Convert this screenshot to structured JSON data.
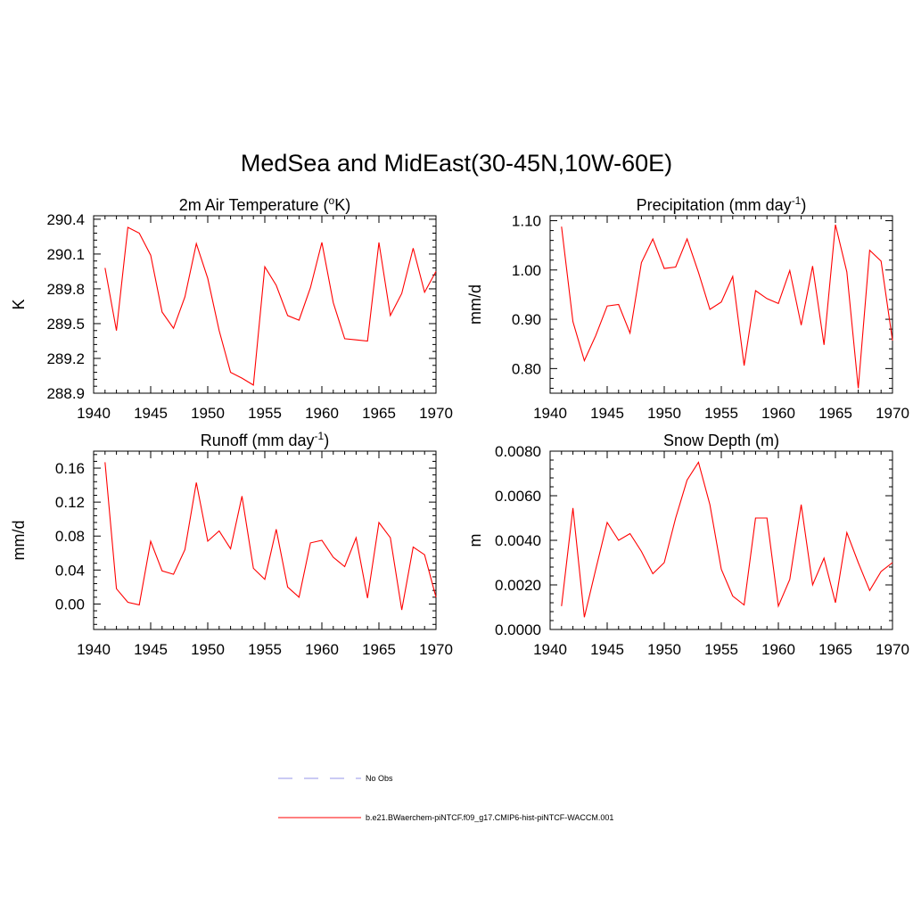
{
  "main_title": "MedSea and MidEast(30-45N,10W-60E)",
  "series_color": "#ff0000",
  "obs_color": "#aaaaee",
  "legend": {
    "obs_label": "No Obs",
    "model_label": "b.e21.BWaerchem-piNTCF.f09_g17.CMIP6-hist-piNTCF-WACCM.001"
  },
  "chart_data": [
    {
      "type": "line",
      "title": "2m Air Temperature (",
      "title_sup": "o",
      "title_after": "K)",
      "title_suffix_sup": "",
      "title_end": "",
      "ylabel": "K",
      "xlim": [
        1940,
        1970
      ],
      "ylim": [
        288.9,
        290.43
      ],
      "xticks": [
        1940,
        1945,
        1950,
        1955,
        1960,
        1965,
        1970
      ],
      "yticks": [
        288.9,
        289.2,
        289.5,
        289.8,
        290.1,
        290.4
      ],
      "ytick_labels": [
        "288.9",
        "289.2",
        "289.5",
        "289.8",
        "290.1",
        "290.4"
      ],
      "x": [
        1941,
        1942,
        1943,
        1944,
        1945,
        1946,
        1947,
        1948,
        1949,
        1950,
        1951,
        1952,
        1953,
        1954,
        1955,
        1956,
        1957,
        1958,
        1959,
        1960,
        1961,
        1962,
        1963,
        1964,
        1965,
        1966,
        1967,
        1968,
        1969,
        1970
      ],
      "values": [
        289.98,
        289.44,
        290.33,
        290.28,
        290.09,
        289.6,
        289.46,
        289.73,
        290.19,
        289.89,
        289.44,
        289.08,
        289.03,
        288.97,
        289.99,
        289.83,
        289.57,
        289.53,
        289.81,
        290.2,
        289.68,
        289.37,
        289.36,
        289.35,
        290.2,
        289.57,
        289.76,
        290.15,
        289.77,
        289.95
      ]
    },
    {
      "type": "line",
      "title": "Precipitation (mm day",
      "title_sup": "-1",
      "title_after": ")",
      "ylabel": "mm/d",
      "xlim": [
        1940,
        1970
      ],
      "ylim": [
        0.75,
        1.11
      ],
      "xticks": [
        1940,
        1945,
        1950,
        1955,
        1960,
        1965,
        1970
      ],
      "yticks": [
        0.8,
        0.9,
        1.0,
        1.1
      ],
      "ytick_labels": [
        "0.80",
        "0.90",
        "1.00",
        "1.10"
      ],
      "x": [
        1941,
        1942,
        1943,
        1944,
        1945,
        1946,
        1947,
        1948,
        1949,
        1950,
        1951,
        1952,
        1953,
        1954,
        1955,
        1956,
        1957,
        1958,
        1959,
        1960,
        1961,
        1962,
        1963,
        1964,
        1965,
        1966,
        1967,
        1968,
        1969,
        1970
      ],
      "values": [
        1.088,
        0.895,
        0.816,
        0.867,
        0.927,
        0.93,
        0.872,
        1.015,
        1.063,
        1.003,
        1.006,
        1.063,
        0.995,
        0.92,
        0.935,
        0.987,
        0.806,
        0.958,
        0.942,
        0.932,
        0.999,
        0.888,
        1.008,
        0.848,
        1.092,
        0.996,
        0.76,
        1.04,
        1.018,
        0.857
      ]
    },
    {
      "type": "line",
      "title": "Runoff (mm day",
      "title_sup": "-1",
      "title_after": ")",
      "ylabel": "mm/d",
      "xlim": [
        1940,
        1970
      ],
      "ylim": [
        -0.03,
        0.18
      ],
      "xticks": [
        1940,
        1945,
        1950,
        1955,
        1960,
        1965,
        1970
      ],
      "yticks": [
        0.0,
        0.04,
        0.08,
        0.12,
        0.16
      ],
      "ytick_labels": [
        "0.00",
        "0.04",
        "0.08",
        "0.12",
        "0.16"
      ],
      "x": [
        1941,
        1942,
        1943,
        1944,
        1945,
        1946,
        1947,
        1948,
        1949,
        1950,
        1951,
        1952,
        1953,
        1954,
        1955,
        1956,
        1957,
        1958,
        1959,
        1960,
        1961,
        1962,
        1963,
        1964,
        1965,
        1966,
        1967,
        1968,
        1969,
        1970
      ],
      "values": [
        0.167,
        0.018,
        0.002,
        -0.001,
        0.074,
        0.039,
        0.035,
        0.064,
        0.143,
        0.074,
        0.086,
        0.065,
        0.127,
        0.042,
        0.029,
        0.088,
        0.02,
        0.008,
        0.072,
        0.075,
        0.055,
        0.044,
        0.078,
        0.007,
        0.096,
        0.078,
        -0.007,
        0.067,
        0.058,
        0.008
      ]
    },
    {
      "type": "line",
      "title": "Snow Depth (m)",
      "title_sup": "",
      "title_after": "",
      "ylabel": "m",
      "xlim": [
        1940,
        1970
      ],
      "ylim": [
        0.0,
        0.008
      ],
      "xticks": [
        1940,
        1945,
        1950,
        1955,
        1960,
        1965,
        1970
      ],
      "yticks": [
        0.0,
        0.002,
        0.004,
        0.006,
        0.008
      ],
      "ytick_labels": [
        "0.0000",
        "0.0020",
        "0.0040",
        "0.0060",
        "0.0080"
      ],
      "x": [
        1941,
        1942,
        1943,
        1944,
        1945,
        1946,
        1947,
        1948,
        1949,
        1950,
        1951,
        1952,
        1953,
        1954,
        1955,
        1956,
        1957,
        1958,
        1959,
        1960,
        1961,
        1962,
        1963,
        1964,
        1965,
        1966,
        1967,
        1968,
        1969,
        1970
      ],
      "values": [
        0.00105,
        0.00545,
        0.00055,
        0.0027,
        0.0048,
        0.004,
        0.0043,
        0.0035,
        0.0025,
        0.003,
        0.005,
        0.0067,
        0.0075,
        0.0056,
        0.0027,
        0.0015,
        0.0011,
        0.005,
        0.005,
        0.00105,
        0.00225,
        0.0056,
        0.002,
        0.0032,
        0.0012,
        0.00435,
        0.003,
        0.00175,
        0.0026,
        0.003
      ]
    }
  ]
}
